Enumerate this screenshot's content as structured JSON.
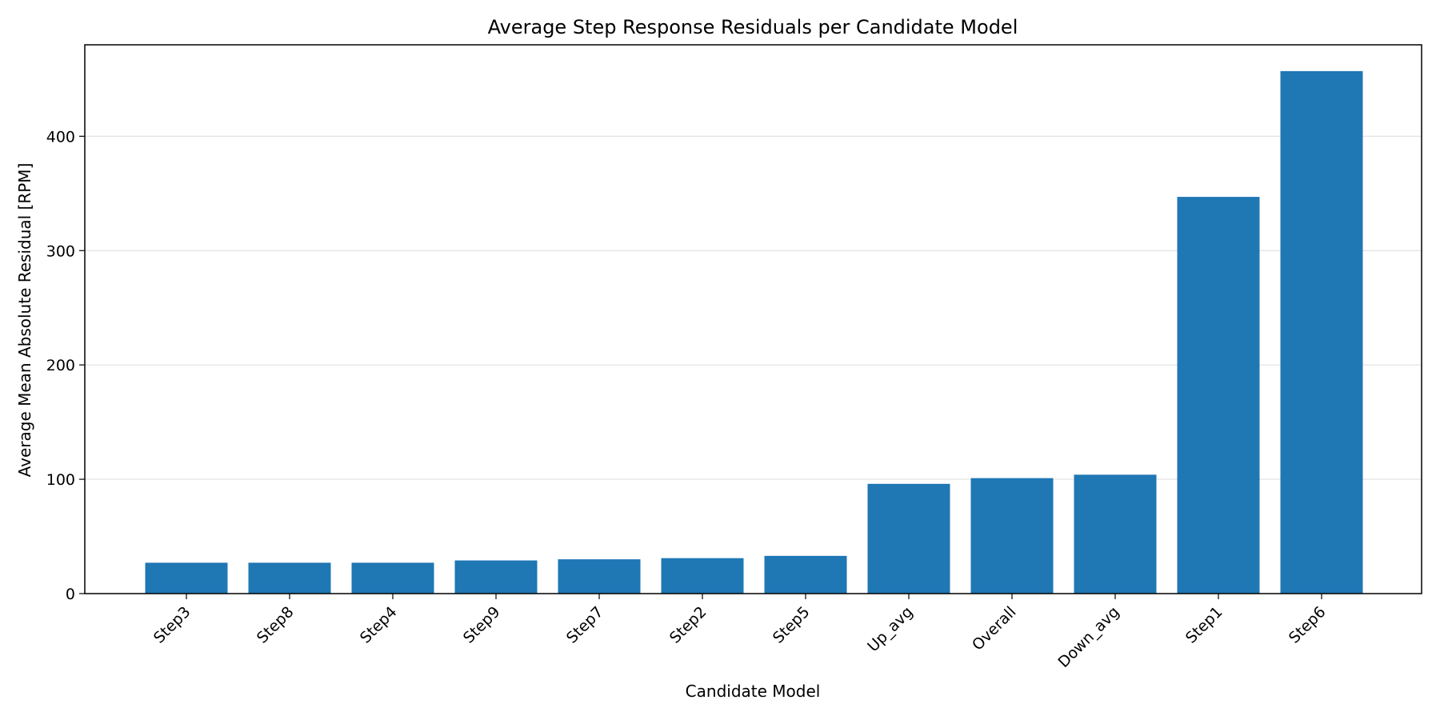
{
  "chart_data": {
    "type": "bar",
    "title": "Average Step Response Residuals per Candidate Model",
    "xlabel": "Candidate Model",
    "ylabel": "Average Mean Absolute Residual [RPM]",
    "categories": [
      "Step3",
      "Step8",
      "Step4",
      "Step9",
      "Step7",
      "Step2",
      "Step5",
      "Up_avg",
      "Overall",
      "Down_avg",
      "Step1",
      "Step6"
    ],
    "values": [
      27,
      27,
      27,
      29,
      30,
      31,
      33,
      96,
      101,
      104,
      347,
      457
    ],
    "ylim": [
      0,
      480
    ],
    "yticks": [
      0,
      100,
      200,
      300,
      400
    ],
    "grid": "horizontal",
    "bar_color": "#1f77b4",
    "grid_color": "#e0e0e0"
  }
}
